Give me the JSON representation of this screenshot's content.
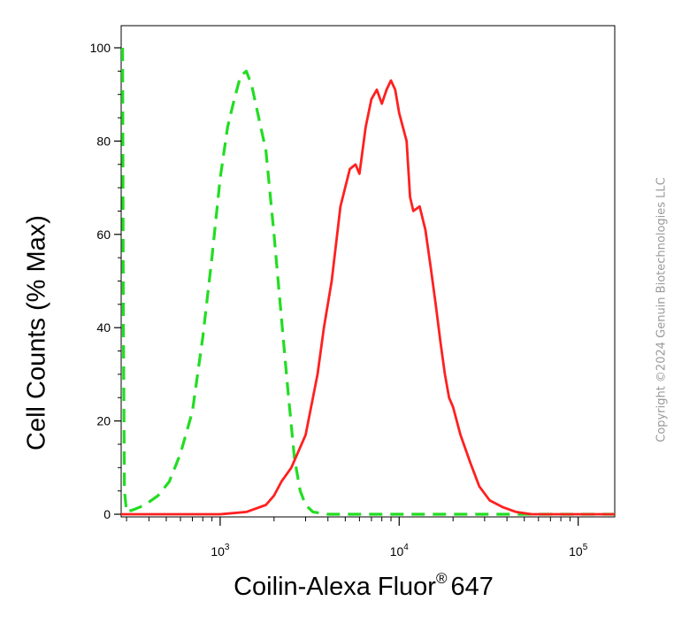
{
  "chart_data": {
    "type": "line",
    "title": "",
    "xlabel": "Coilin-Alexa Fluor",
    "xlabel_superscript": "®",
    "xlabel_suffix": "647",
    "ylabel": "Cell Counts (% Max)",
    "x_scale": "log",
    "xlim": [
      280,
      160000
    ],
    "ylim": [
      0,
      105
    ],
    "x_ticks": [
      {
        "value": 1000,
        "base": "10",
        "exp": "3"
      },
      {
        "value": 10000,
        "base": "10",
        "exp": "4"
      },
      {
        "value": 100000,
        "base": "10",
        "exp": "5"
      }
    ],
    "y_ticks": [
      0,
      20,
      40,
      60,
      80,
      100
    ],
    "grid": false,
    "series": [
      {
        "color": "#22dd22",
        "style": "dashed",
        "points": [
          [
            285,
            100
          ],
          [
            288,
            40
          ],
          [
            292,
            5
          ],
          [
            300,
            0.5
          ],
          [
            330,
            1
          ],
          [
            380,
            2
          ],
          [
            450,
            4
          ],
          [
            520,
            7
          ],
          [
            600,
            13
          ],
          [
            700,
            22
          ],
          [
            800,
            38
          ],
          [
            900,
            55
          ],
          [
            1000,
            72
          ],
          [
            1100,
            83
          ],
          [
            1200,
            89
          ],
          [
            1300,
            94
          ],
          [
            1400,
            95
          ],
          [
            1500,
            92
          ],
          [
            1600,
            87
          ],
          [
            1800,
            78
          ],
          [
            2000,
            60
          ],
          [
            2200,
            42
          ],
          [
            2400,
            26
          ],
          [
            2600,
            12
          ],
          [
            2800,
            5
          ],
          [
            3000,
            2
          ],
          [
            3300,
            0.5
          ],
          [
            4000,
            0
          ],
          [
            10000,
            0
          ],
          [
            100000,
            0
          ],
          [
            160000,
            0
          ]
        ]
      },
      {
        "color": "#ff2020",
        "style": "solid",
        "points": [
          [
            280,
            0
          ],
          [
            1000,
            0
          ],
          [
            1400,
            0.5
          ],
          [
            1800,
            2
          ],
          [
            2000,
            4
          ],
          [
            2200,
            7
          ],
          [
            2500,
            10
          ],
          [
            3000,
            17
          ],
          [
            3500,
            30
          ],
          [
            3800,
            40
          ],
          [
            4200,
            50
          ],
          [
            4700,
            66
          ],
          [
            5300,
            74
          ],
          [
            5700,
            75
          ],
          [
            6000,
            73
          ],
          [
            6500,
            83
          ],
          [
            7000,
            89
          ],
          [
            7500,
            91
          ],
          [
            8000,
            88
          ],
          [
            8500,
            91
          ],
          [
            9000,
            93
          ],
          [
            9500,
            91
          ],
          [
            10000,
            86
          ],
          [
            11000,
            80
          ],
          [
            11500,
            68
          ],
          [
            12000,
            65
          ],
          [
            13000,
            66
          ],
          [
            14000,
            61
          ],
          [
            15000,
            53
          ],
          [
            16000,
            45
          ],
          [
            17000,
            37
          ],
          [
            18000,
            30
          ],
          [
            19000,
            25
          ],
          [
            20000,
            23
          ],
          [
            22000,
            17
          ],
          [
            25000,
            11
          ],
          [
            28000,
            6
          ],
          [
            32000,
            3
          ],
          [
            38000,
            1.5
          ],
          [
            45000,
            0.5
          ],
          [
            55000,
            0
          ],
          [
            160000,
            0
          ]
        ]
      }
    ]
  },
  "copyright": "Copyright ©2024 Genuin Biotechnologies LLC"
}
